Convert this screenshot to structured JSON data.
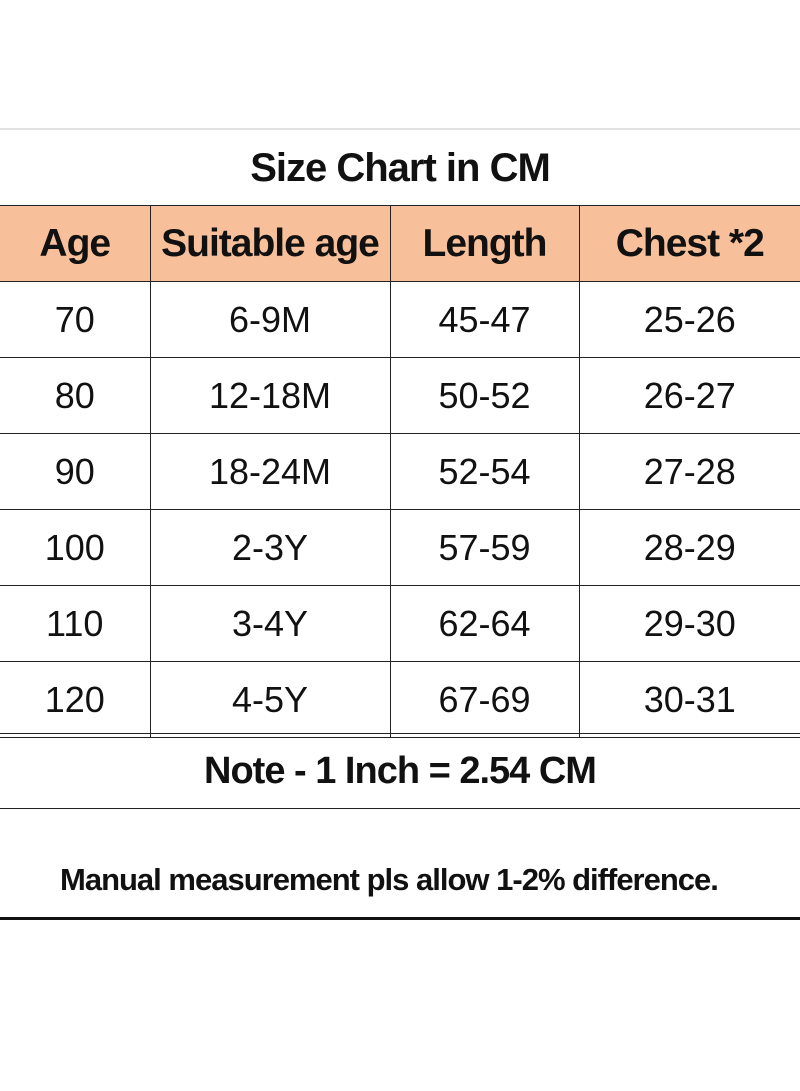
{
  "title": "Size Chart in CM",
  "table": {
    "headers": [
      "Age",
      "Suitable age",
      "Length",
      "Chest *2"
    ],
    "rows": [
      [
        "70",
        "6-9M",
        "45-47",
        "25-26"
      ],
      [
        "80",
        "12-18M",
        "50-52",
        "26-27"
      ],
      [
        "90",
        "18-24M",
        "52-54",
        "27-28"
      ],
      [
        "100",
        "2-3Y",
        "57-59",
        "28-29"
      ],
      [
        "110",
        "3-4Y",
        "62-64",
        "29-30"
      ],
      [
        "120",
        "4-5Y",
        "67-69",
        "30-31"
      ]
    ]
  },
  "note": "Note - 1 Inch = 2.54 CM",
  "manual_note": "Manual measurement pls allow 1-2% difference.",
  "colors": {
    "header_bg": "#f8c09a",
    "text": "#111111",
    "border": "#222222"
  }
}
